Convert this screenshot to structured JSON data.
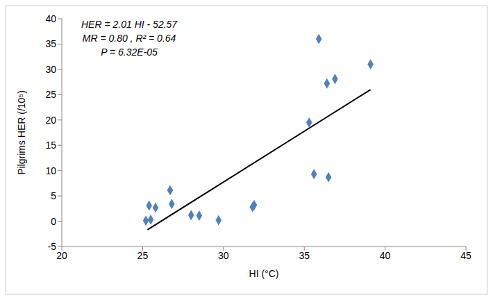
{
  "chart_data": {
    "type": "scatter",
    "x_label": "HI (°C)",
    "y_label": "Pilgrims HER (/10⁵)",
    "annotations": [
      "HER = 2.01 HI - 52.57",
      "MR = 0.80 , R² = 0.64",
      "P = 6.32E-05"
    ],
    "x": [
      25.2,
      25.4,
      25.5,
      25.8,
      26.7,
      26.8,
      28.0,
      28.5,
      29.7,
      31.8,
      31.9,
      35.3,
      35.6,
      35.9,
      36.4,
      36.5,
      36.9,
      39.1
    ],
    "values": [
      0.1,
      3.1,
      0.3,
      2.7,
      6.1,
      3.4,
      1.2,
      1.1,
      0.2,
      2.8,
      3.2,
      19.5,
      9.3,
      36.0,
      27.2,
      8.7,
      28.1,
      31.0
    ],
    "color": "#4f81bd",
    "marker": "diamond",
    "trendline": {
      "x": [
        25.3,
        39.1
      ],
      "values": [
        -1.7,
        26.0
      ],
      "color": "#000000",
      "line_style": "solid"
    },
    "xlim": [
      20,
      45
    ],
    "xticks": [
      20,
      25,
      30,
      35,
      40,
      45
    ],
    "ylim": [
      -5,
      40
    ],
    "yticks": [
      -5,
      0,
      5,
      10,
      15,
      20,
      25,
      30,
      35,
      40
    ],
    "grid": false
  }
}
